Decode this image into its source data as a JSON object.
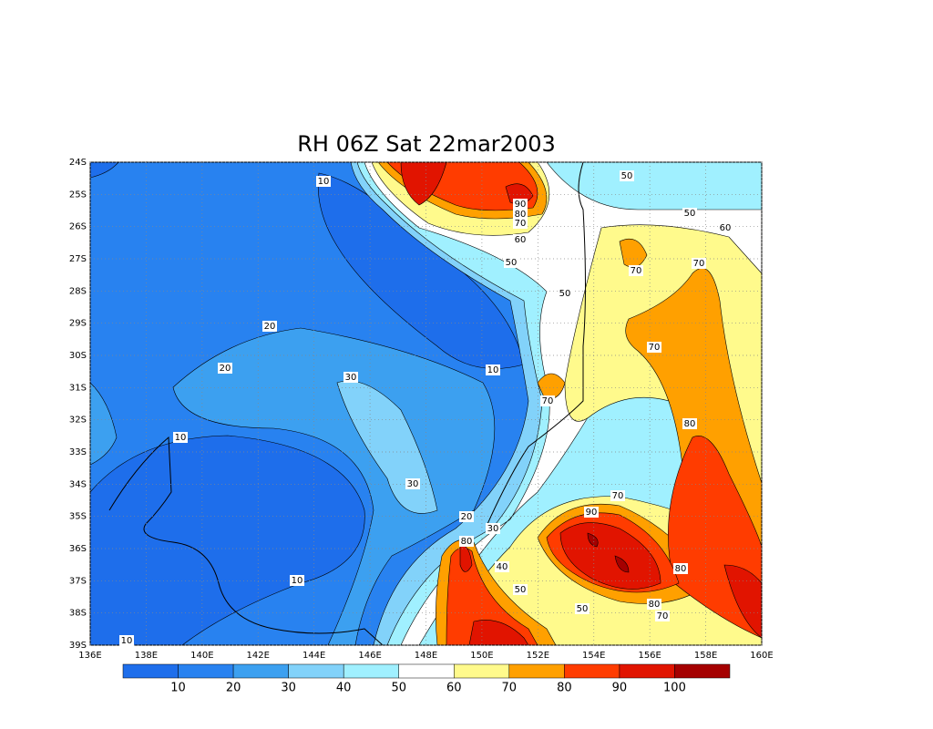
{
  "title": "RH 06Z Sat 22mar2003",
  "lon_ticks": [
    "136E",
    "138E",
    "140E",
    "142E",
    "144E",
    "146E",
    "148E",
    "150E",
    "152E",
    "154E",
    "156E",
    "158E",
    "160E"
  ],
  "lat_ticks": [
    "24S",
    "25S",
    "26S",
    "27S",
    "28S",
    "29S",
    "30S",
    "31S",
    "32S",
    "33S",
    "34S",
    "35S",
    "36S",
    "37S",
    "38S",
    "39S"
  ],
  "colorbar": {
    "levels": [
      10,
      20,
      30,
      40,
      50,
      60,
      70,
      80,
      90,
      100
    ],
    "colors": [
      "#1e6eeb",
      "#2882f0",
      "#3ca0f0",
      "#82d2fa",
      "#a0f0ff",
      "#ffffff",
      "#fffa8c",
      "#ffa000",
      "#ff3c00",
      "#e11400",
      "#a50000"
    ]
  },
  "contour_labels": [
    10,
    90,
    80,
    70,
    50,
    50,
    60,
    60,
    50,
    70,
    70,
    50,
    20,
    70,
    20,
    30,
    10,
    70,
    80,
    10,
    30,
    70,
    20,
    90,
    30,
    80,
    40,
    10,
    80,
    50,
    50,
    80,
    70,
    10
  ]
}
